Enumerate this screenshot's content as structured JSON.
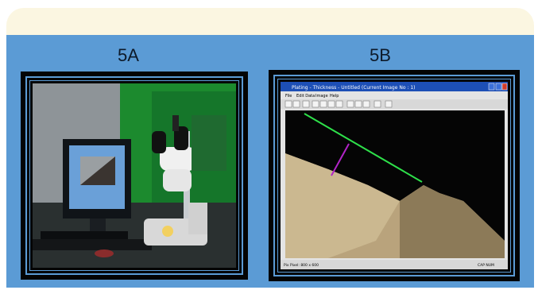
{
  "labels": {
    "a": "5A",
    "b": "5B"
  },
  "figure_a": {
    "icon": "microscope-workstation-photo"
  },
  "figure_b": {
    "icon": "microscope-software-window",
    "window_title": "Plating - Thickness - Untitled (Current Image No : 1)",
    "menu": [
      "File",
      "Edit Data",
      "Image",
      "Help"
    ],
    "status_left": "Pix Pixel: 800 x 600",
    "status_right": "CAP NUM"
  },
  "colors": {
    "panel": "#5b9bd5",
    "banner": "#fbf6e1",
    "frame": "#040404",
    "measure_line_1": "#2ee04a",
    "measure_line_2": "#b224c8"
  }
}
